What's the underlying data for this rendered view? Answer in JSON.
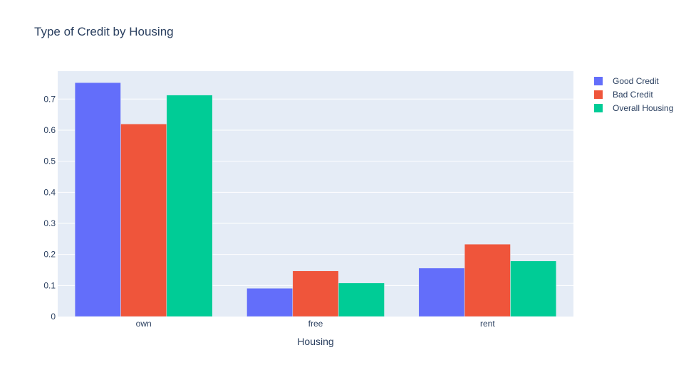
{
  "chart_data": {
    "type": "bar",
    "title": "Type of Credit by Housing",
    "xlabel": "Housing",
    "ylabel": "",
    "categories": [
      "own",
      "free",
      "rent"
    ],
    "series": [
      {
        "name": "Good Credit",
        "values": [
          0.753,
          0.091,
          0.156
        ],
        "color": "#636efa"
      },
      {
        "name": "Bad Credit",
        "values": [
          0.62,
          0.147,
          0.233
        ],
        "color": "#ef553b"
      },
      {
        "name": "Overall Housing",
        "values": [
          0.713,
          0.108,
          0.179
        ],
        "color": "#00cc96"
      }
    ],
    "ylim": [
      0,
      0.79
    ],
    "yticks": [
      0,
      0.1,
      0.2,
      0.3,
      0.4,
      0.5,
      0.6,
      0.7
    ],
    "ytick_labels": [
      "0",
      "0.1",
      "0.2",
      "0.3",
      "0.4",
      "0.5",
      "0.6",
      "0.7"
    ],
    "grid": true,
    "legend_position": "top-right",
    "plot_background": "#e5ecf6",
    "grid_color": "#ffffff",
    "text_color": "#2a3f5f"
  }
}
